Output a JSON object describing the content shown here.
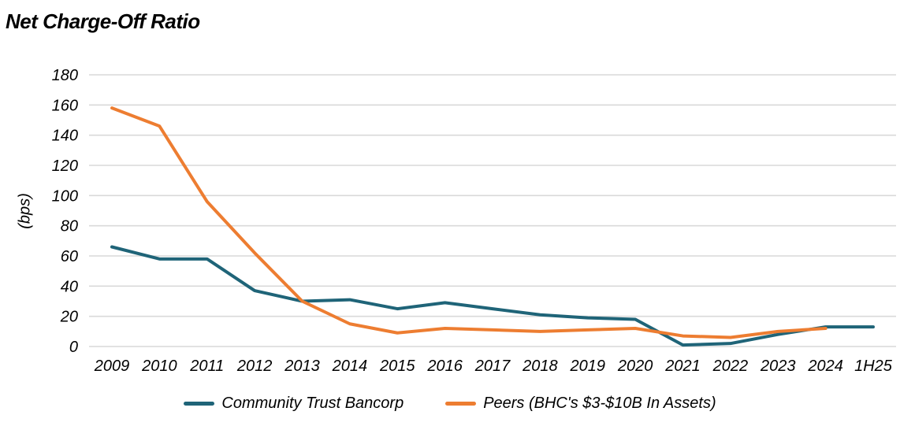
{
  "page": {
    "background": "#ffffff"
  },
  "header": {
    "title": "Net Charge-Off Ratio"
  },
  "chart_data": {
    "type": "line",
    "title": "Net Charge-Off Ratio",
    "xlabel": "",
    "ylabel": "(bps)",
    "ylim": [
      0,
      180
    ],
    "ytick_step": 20,
    "grid": true,
    "legend_position": "bottom",
    "gridline_color": "#d9d9d9",
    "text_color": "#000000",
    "categories": [
      "2009",
      "2010",
      "2011",
      "2012",
      "2013",
      "2014",
      "2015",
      "2016",
      "2017",
      "2018",
      "2019",
      "2020",
      "2021",
      "2022",
      "2023",
      "2024",
      "1H25"
    ],
    "series": [
      {
        "name": "Community Trust Bancorp",
        "color": "#1F6478",
        "values": [
          66,
          58,
          58,
          37,
          30,
          31,
          25,
          29,
          25,
          21,
          19,
          18,
          1,
          2,
          8,
          13,
          13
        ]
      },
      {
        "name": "Peers (BHC's $3-$10B In Assets)",
        "color": "#ED7D31",
        "values": [
          158,
          146,
          96,
          62,
          30,
          15,
          9,
          12,
          11,
          10,
          11,
          12,
          7,
          6,
          10,
          12,
          null
        ]
      }
    ]
  }
}
